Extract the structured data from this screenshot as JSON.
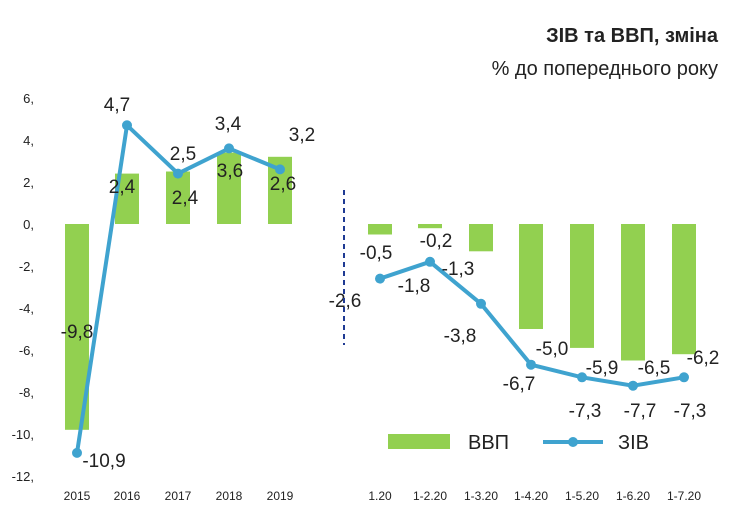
{
  "chart_data": {
    "type": "bar",
    "title": "ЗІВ та ВВП, зміна",
    "subtitle": "% до попереднього року",
    "categories": [
      "2015",
      "2016",
      "2017",
      "2018",
      "2019",
      "1.20",
      "1-2.20",
      "1-3.20",
      "1-4.20",
      "1-5.20",
      "1-6.20",
      "1-7.20"
    ],
    "ylim": [
      -12,
      6
    ],
    "yticks": [
      "6,",
      "4,",
      "2,",
      "0,",
      "-2,",
      "-4,",
      "-6,",
      "-8,",
      "-10,",
      "-12,"
    ],
    "ytick_values": [
      6,
      4,
      2,
      0,
      -2,
      -4,
      -6,
      -8,
      -10,
      -12
    ],
    "grid": false,
    "legend": "bottom-right",
    "series": [
      {
        "name": "ВВП",
        "type": "bar",
        "color": "#92D050",
        "values": [
          -9.8,
          2.4,
          2.5,
          3.4,
          3.2,
          -0.5,
          -0.2,
          -1.3,
          -5.0,
          -5.9,
          -6.5,
          -6.2
        ],
        "labels": [
          "-9,8",
          "2,4",
          "2,5",
          "3,4",
          "3,2",
          "-0,5",
          "-0,2",
          "-1,3",
          "-5,0",
          "-5,9",
          "-6,5",
          "-6,2"
        ]
      },
      {
        "name": "ЗІВ",
        "type": "line",
        "color": "#3FA3CF",
        "values": [
          -10.9,
          4.7,
          2.4,
          3.6,
          2.6,
          -2.6,
          -1.8,
          -3.8,
          -6.7,
          -7.3,
          -7.7,
          -7.3
        ],
        "labels": [
          "-10,9",
          "4,7",
          "2,4",
          "3,6",
          "2,6",
          "-2,6",
          "-1,8",
          "-3,8",
          "-6,7",
          "-7,3",
          "-7,7",
          "-7,3"
        ]
      }
    ],
    "divider_color": "#1F3A93"
  }
}
